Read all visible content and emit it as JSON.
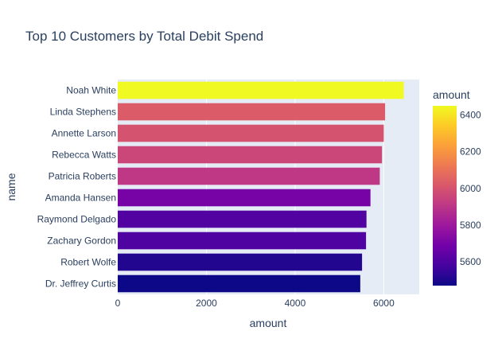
{
  "chart_data": {
    "type": "bar",
    "orientation": "horizontal",
    "title": "Top 10 Customers by Total Debit Spend",
    "xlabel": "amount",
    "ylabel": "name",
    "xlim": [
      0,
      6800
    ],
    "x_ticks": [
      0,
      2000,
      4000,
      6000
    ],
    "x_tick_labels": [
      "0",
      "2000",
      "4000",
      "6000"
    ],
    "categories": [
      "Noah White",
      "Linda Stephens",
      "Annette Larson",
      "Rebecca Watts",
      "Patricia Roberts",
      "Amanda Hansen",
      "Raymond Delgado",
      "Zachary Gordon",
      "Robert Wolfe",
      "Dr. Jeffrey Curtis"
    ],
    "values": [
      6450,
      6030,
      6000,
      5960,
      5910,
      5700,
      5610,
      5600,
      5510,
      5470
    ],
    "grid": true,
    "plot_background": "#e5ecf6",
    "colorbar": {
      "title": "amount",
      "range": [
        5470,
        6450
      ],
      "ticks": [
        5600,
        5800,
        6000,
        6200,
        6400
      ],
      "tick_labels": [
        "5600",
        "5800",
        "6000",
        "6200",
        "6400"
      ],
      "placement": "right"
    },
    "colorscale": [
      "#0d0887",
      "#46039f",
      "#7201a8",
      "#9c179e",
      "#bd3786",
      "#d8576b",
      "#ed7953",
      "#fb9f3a",
      "#fdca26",
      "#f0f921"
    ]
  }
}
